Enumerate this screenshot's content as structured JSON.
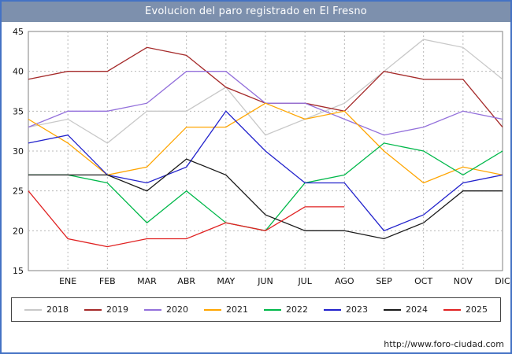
{
  "title": "Evolucion del paro registrado en El Fresno",
  "footer": {
    "url": "http://www.foro-ciudad.com"
  },
  "colors": {
    "page_border": "#4472c4",
    "title_bg": "#7d90ad",
    "grid": "#b8b8b8",
    "plot_border": "#808080"
  },
  "chart_data": {
    "type": "line",
    "title": "Evolucion del paro registrado en El Fresno",
    "x_labels": [
      "",
      "ENE",
      "FEB",
      "MAR",
      "ABR",
      "MAY",
      "JUN",
      "JUL",
      "AGO",
      "SEP",
      "OCT",
      "NOV",
      "DIC"
    ],
    "ylim": [
      15,
      45
    ],
    "yticks": [
      15,
      20,
      25,
      30,
      35,
      40,
      45
    ],
    "grid": true,
    "legend_position": "bottom",
    "series": [
      {
        "name": "2018",
        "color": "#c8c8c8",
        "values": [
          33,
          34,
          31,
          35,
          35,
          38,
          32,
          34,
          36,
          40,
          44,
          43,
          39
        ]
      },
      {
        "name": "2019",
        "color": "#a52a2a",
        "values": [
          39,
          40,
          40,
          43,
          42,
          38,
          36,
          36,
          35,
          40,
          39,
          39,
          33
        ]
      },
      {
        "name": "2020",
        "color": "#9370db",
        "values": [
          33,
          35,
          35,
          36,
          40,
          40,
          36,
          36,
          34,
          32,
          33,
          35,
          34
        ]
      },
      {
        "name": "2021",
        "color": "#ffa500",
        "values": [
          34,
          31,
          27,
          28,
          33,
          33,
          36,
          34,
          35,
          30,
          26,
          28,
          27
        ]
      },
      {
        "name": "2022",
        "color": "#00b84a",
        "values": [
          27,
          27,
          26,
          21,
          25,
          21,
          20,
          26,
          27,
          31,
          30,
          27,
          30
        ]
      },
      {
        "name": "2023",
        "color": "#2222cc",
        "values": [
          31,
          32,
          27,
          26,
          28,
          35,
          30,
          26,
          26,
          20,
          22,
          26,
          27
        ]
      },
      {
        "name": "2024",
        "color": "#1a1a1a",
        "values": [
          27,
          27,
          27,
          25,
          29,
          27,
          22,
          20,
          20,
          19,
          21,
          25,
          25
        ]
      },
      {
        "name": "2025",
        "color": "#e02222",
        "values": [
          25,
          19,
          18,
          19,
          19,
          21,
          20,
          23,
          23,
          null,
          null,
          null,
          null
        ]
      }
    ]
  }
}
